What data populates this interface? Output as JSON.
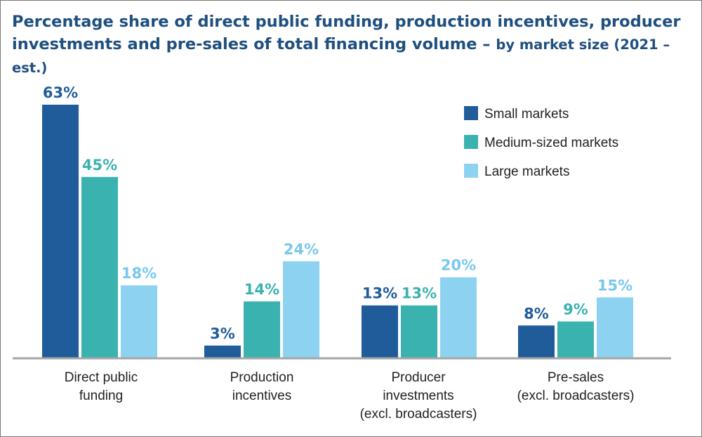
{
  "title": {
    "main": "Percentage share of direct public funding, production incentives, producer investments and pre-sales of total financing volume –",
    "sub": "by market size (2021 – est.)"
  },
  "chart_data": {
    "type": "bar",
    "categories": [
      [
        "Direct public",
        "funding"
      ],
      [
        "Production",
        "incentives"
      ],
      [
        "Producer",
        "investments",
        "(excl. broadcasters)"
      ],
      [
        "Pre-sales",
        "(excl. broadcasters)"
      ]
    ],
    "series": [
      {
        "name": "Small markets",
        "color": "#1f5c99",
        "values": [
          63,
          3,
          13,
          8
        ],
        "labels": [
          "63%",
          "3%",
          "13%",
          "8%"
        ]
      },
      {
        "name": "Medium-sized markets",
        "color": "#3ab3b0",
        "values": [
          45,
          14,
          13,
          9
        ],
        "labels": [
          "45%",
          "14%",
          "13%",
          "9%"
        ]
      },
      {
        "name": "Large markets",
        "color": "#8ed2f2",
        "values": [
          18,
          24,
          20,
          15
        ],
        "labels": [
          "18%",
          "24%",
          "20%",
          "15%"
        ]
      }
    ],
    "ylim": [
      0,
      63
    ],
    "legend_position": "top-right",
    "grid": false,
    "xlabel": "",
    "ylabel": ""
  }
}
